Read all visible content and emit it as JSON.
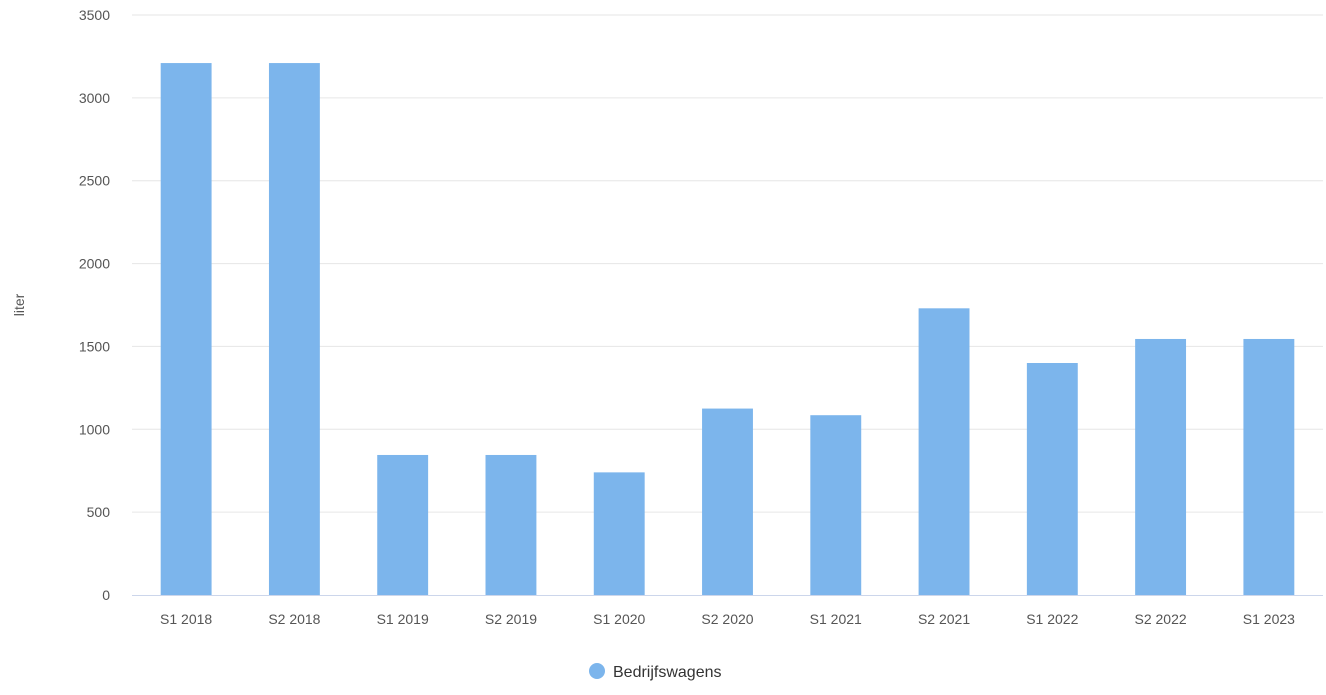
{
  "chart_data": {
    "type": "bar",
    "categories": [
      "S1 2018",
      "S2 2018",
      "S1 2019",
      "S2 2019",
      "S1 2020",
      "S2 2020",
      "S1 2021",
      "S2 2021",
      "S1 2022",
      "S2 2022",
      "S1 2023"
    ],
    "series": [
      {
        "name": "Bedrijfswagens",
        "color": "#7cb5ec",
        "values": [
          3210,
          3210,
          845,
          845,
          740,
          1125,
          1085,
          1730,
          1400,
          1545,
          1545
        ]
      }
    ],
    "xlabel": "",
    "ylabel": "liter",
    "ylim": [
      0,
      3500
    ],
    "yticks": [
      0,
      500,
      1000,
      1500,
      2000,
      2500,
      3000,
      3500
    ],
    "grid": true,
    "legend": "bottom-center"
  }
}
